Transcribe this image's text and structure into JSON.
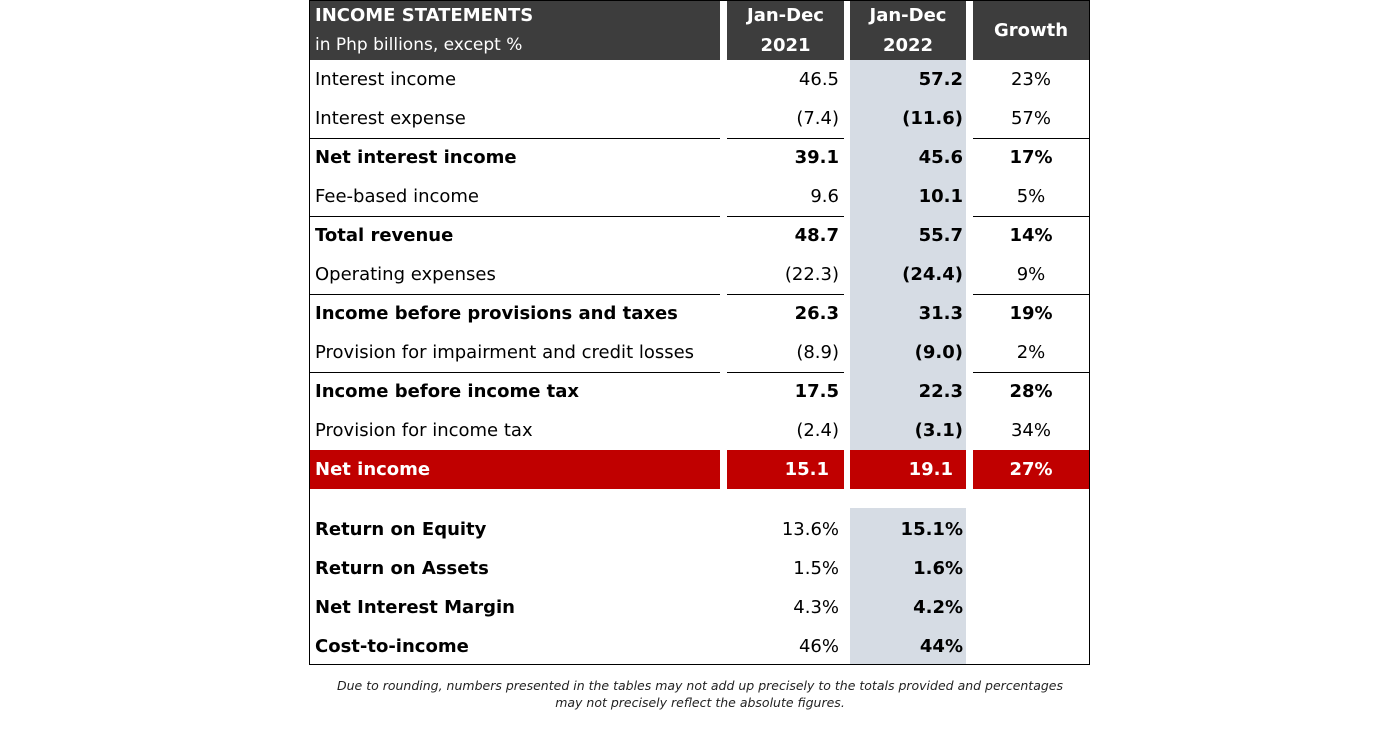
{
  "header": {
    "title": "INCOME STATEMENTS",
    "subtitle": "in Php billions, except %",
    "col1_line1": "Jan-Dec",
    "col1_line2": "2021",
    "col2_line1": "Jan-Dec",
    "col2_line2": "2022",
    "col3": "Growth"
  },
  "rows": [
    {
      "label": "Interest income",
      "y2021": "46.5",
      "y2022": "57.2",
      "growth": "23%"
    },
    {
      "label": "Interest expense",
      "y2021": "(7.4)",
      "y2022": "(11.6)",
      "growth": "57%"
    },
    {
      "label": "Net interest income",
      "y2021": "39.1",
      "y2022": "45.6",
      "growth": "17%"
    },
    {
      "label": "Fee-based income",
      "y2021": "9.6",
      "y2022": "10.1",
      "growth": "5%"
    },
    {
      "label": "Total revenue",
      "y2021": "48.7",
      "y2022": "55.7",
      "growth": "14%"
    },
    {
      "label": "Operating expenses",
      "y2021": "(22.3)",
      "y2022": "(24.4)",
      "growth": "9%"
    },
    {
      "label": "Income before provisions and taxes",
      "y2021": "26.3",
      "y2022": "31.3",
      "growth": "19%"
    },
    {
      "label": "Provision for impairment and credit losses",
      "y2021": "(8.9)",
      "y2022": "(9.0)",
      "growth": "2%"
    },
    {
      "label": "Income before income tax",
      "y2021": "17.5",
      "y2022": "22.3",
      "growth": "28%"
    },
    {
      "label": "Provision for income tax",
      "y2021": "(2.4)",
      "y2022": "(3.1)",
      "growth": "34%"
    },
    {
      "label": "Net income",
      "y2021": "15.1",
      "y2022": "19.1",
      "growth": "27%"
    }
  ],
  "ratios": [
    {
      "label": "Return on Equity",
      "y2021": "13.6%",
      "y2022": "15.1%"
    },
    {
      "label": "Return on Assets",
      "y2021": "1.5%",
      "y2022": "1.6%"
    },
    {
      "label": "Net Interest Margin",
      "y2021": "4.3%",
      "y2022": "4.2%"
    },
    {
      "label": "Cost-to-income",
      "y2021": "46%",
      "y2022": "44%"
    }
  ],
  "footnote": {
    "line1": "Due to rounding, numbers presented in the tables may not add up precisely to the totals provided and percentages",
    "line2": "may not precisely reflect the absolute figures."
  },
  "colors": {
    "header_bg": "#3d3d3d",
    "highlight_2022": "#d6dce4",
    "net_income_bg": "#c00000"
  }
}
